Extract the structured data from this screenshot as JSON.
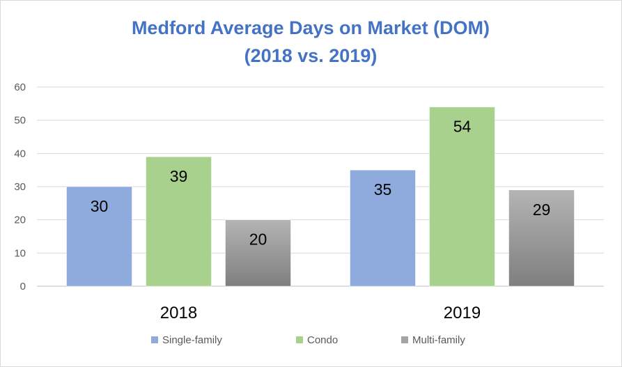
{
  "chart_data": {
    "type": "bar",
    "title_lines": [
      "Medford Average Days on Market (DOM)",
      "(2018 vs. 2019)"
    ],
    "categories": [
      "2018",
      "2019"
    ],
    "series": [
      {
        "name": "Single-family",
        "values": [
          30,
          35
        ],
        "color": "#8faadc"
      },
      {
        "name": "Condo",
        "values": [
          39,
          54
        ],
        "color": "#a9d18e"
      },
      {
        "name": "Multi-family",
        "values": [
          20,
          29
        ],
        "color": "#a5a5a5"
      }
    ],
    "ylim": [
      0,
      60
    ],
    "yticks": [
      "0",
      "10",
      "20",
      "30",
      "40",
      "50",
      "60"
    ],
    "grid": true,
    "legend_position": "bottom",
    "data_labels": true
  }
}
